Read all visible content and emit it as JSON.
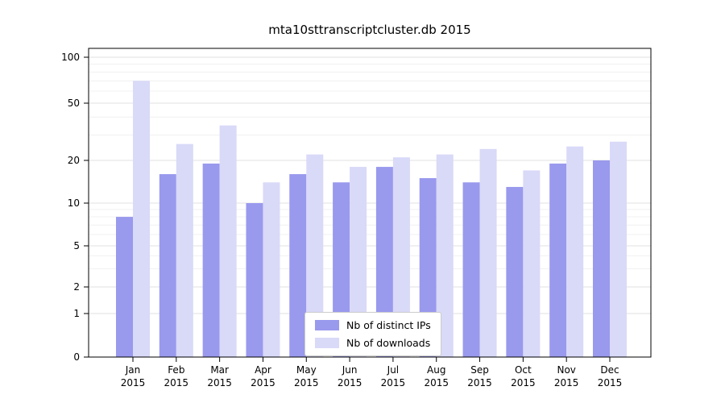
{
  "figure": {
    "background": "#ffffff"
  },
  "chart_data": {
    "type": "bar",
    "title": "mta10sttranscriptcluster.db 2015",
    "categories": [
      "Jan",
      "Feb",
      "Mar",
      "Apr",
      "May",
      "Jun",
      "Jul",
      "Aug",
      "Sep",
      "Oct",
      "Nov",
      "Dec"
    ],
    "year_label": "2015",
    "series": [
      {
        "name": "Nb of distinct IPs",
        "color": "#9999ee",
        "values": [
          8,
          16,
          19,
          10,
          16,
          14,
          18,
          15,
          14,
          13,
          19,
          20
        ]
      },
      {
        "name": "Nb of downloads",
        "color": "#d9d9f8",
        "values": [
          70,
          26,
          35,
          14,
          22,
          18,
          21,
          22,
          24,
          17,
          25,
          27
        ]
      }
    ],
    "yscale": "symlog",
    "yticks": [
      0,
      1,
      2,
      5,
      10,
      20,
      50,
      100
    ],
    "ylim": [
      0,
      100
    ],
    "grid": true,
    "legend_position": "lower center",
    "colors": {
      "axis": "#000000",
      "major_grid": "#e0e0e0",
      "minor_grid": "#f0f0f0",
      "text": "#000000"
    }
  }
}
